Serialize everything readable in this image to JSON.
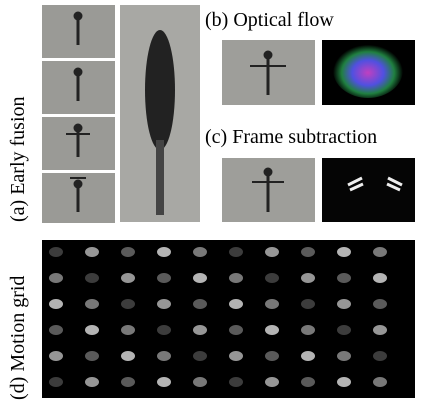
{
  "panels": {
    "a": {
      "label": "(a) Early fusion"
    },
    "b": {
      "label": "(b) Optical flow"
    },
    "c": {
      "label": "(c) Frame subtraction"
    },
    "d": {
      "label": "(d) Motion grid"
    }
  }
}
